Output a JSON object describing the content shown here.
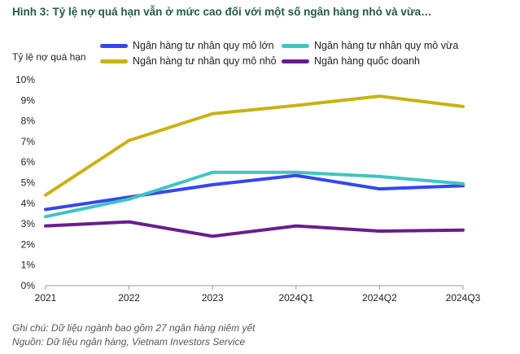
{
  "chart_data": {
    "type": "line",
    "title": "Hình 3: Tỷ lệ nợ quá hạn vẫn ở mức cao đối với một số ngân hàng nhỏ và vừa…",
    "ylabel": "Tỷ lệ nợ quá hạn",
    "xlabel": "",
    "categories": [
      "2021",
      "2022",
      "2023",
      "2024Q1",
      "2024Q2",
      "2024Q3"
    ],
    "ylim": [
      0,
      10
    ],
    "yticks": [
      "0%",
      "1%",
      "2%",
      "3%",
      "4%",
      "5%",
      "6%",
      "7%",
      "8%",
      "9%",
      "10%"
    ],
    "grid": false,
    "legend_position": "top",
    "series": [
      {
        "name": "Ngân hàng tư nhân quy mô lớn",
        "color": "#3347f0",
        "values": [
          3.7,
          4.3,
          4.9,
          5.35,
          4.7,
          4.85
        ]
      },
      {
        "name": "Ngân hàng tư nhân quy mô vừa",
        "color": "#40c4c1",
        "values": [
          3.35,
          4.2,
          5.5,
          5.5,
          5.3,
          4.95
        ]
      },
      {
        "name": "Ngân hàng tư nhân quy mô nhỏ",
        "color": "#c7b312",
        "values": [
          4.4,
          7.05,
          8.35,
          8.75,
          9.2,
          8.7
        ]
      },
      {
        "name": "Ngân hàng quốc doanh",
        "color": "#6a1c8e",
        "values": [
          2.9,
          3.1,
          2.4,
          2.9,
          2.65,
          2.7
        ]
      }
    ]
  },
  "notes": {
    "note": "Ghi chú: Dữ liệu ngành bao gồm 27 ngân hàng niêm yết",
    "source": "Nguồn: Dữ liệu ngân hàng, Vietnam Investors Service"
  }
}
